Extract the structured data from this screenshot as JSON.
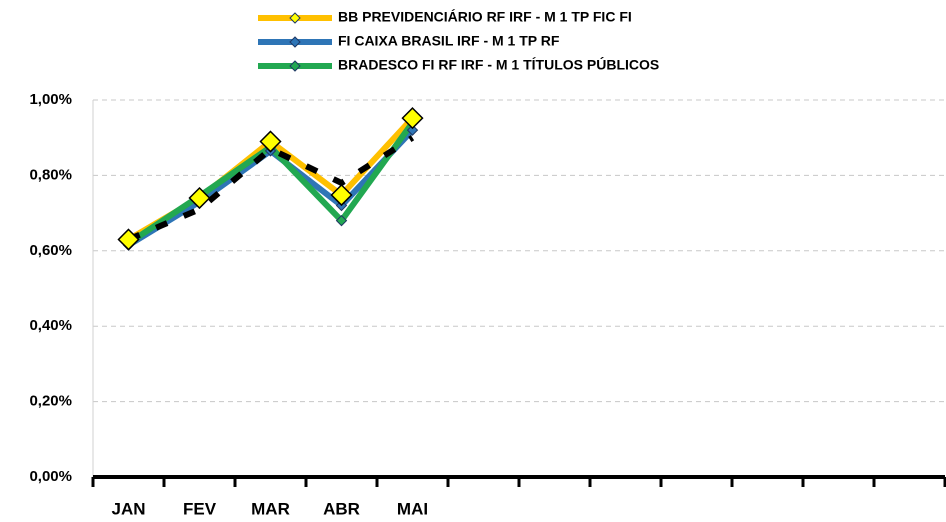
{
  "chart_data": {
    "type": "line",
    "categories": [
      "JAN",
      "FEV",
      "MAR",
      "ABR",
      "MAI",
      null,
      null,
      null,
      null,
      null,
      null,
      null
    ],
    "series": [
      {
        "name": "BB PREVIDENCIÁRIO RF IRF - M 1 TP FIC FI",
        "color": "#ffc000",
        "marker_color": "#ffff00",
        "values": [
          0.63,
          0.74,
          0.89,
          0.748,
          0.952,
          null,
          null,
          null,
          null,
          null,
          null,
          null
        ]
      },
      {
        "name": "FI CAIXA BRASIL IRF - M 1 TP RF",
        "color": "#2e75b6",
        "values": [
          0.615,
          0.73,
          0.865,
          0.72,
          0.92,
          null,
          null,
          null,
          null,
          null,
          null,
          null
        ]
      },
      {
        "name": "BRADESCO FI RF IRF - M 1 TÍTULOS PÚBLICOS",
        "color": "#22a851",
        "values": [
          0.62,
          0.745,
          0.875,
          0.68,
          0.94,
          null,
          null,
          null,
          null,
          null,
          null,
          null
        ]
      },
      {
        "color": "#000000",
        "dashed": true,
        "values": [
          0.63,
          0.71,
          0.87,
          0.78,
          0.9,
          null,
          null,
          null,
          null,
          null,
          null,
          null
        ]
      }
    ],
    "ylim": [
      0,
      1
    ],
    "yticks": [
      {
        "value": 0,
        "label": "0,00%"
      },
      {
        "value": 0.2,
        "label": "0,20%"
      },
      {
        "value": 0.4,
        "label": "0,40%"
      },
      {
        "value": 0.6,
        "label": "0,60%"
      },
      {
        "value": 0.8,
        "label": "0,80%"
      },
      {
        "value": 1,
        "label": "1,00%"
      }
    ],
    "grid": true,
    "legend": "top"
  }
}
